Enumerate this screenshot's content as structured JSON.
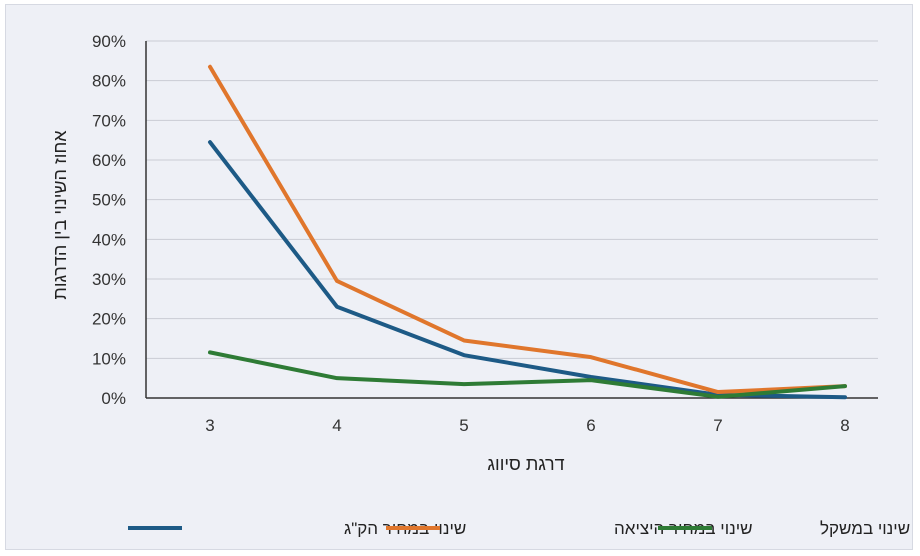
{
  "chart_data": {
    "type": "line",
    "x": [
      3,
      4,
      5,
      6,
      7,
      8
    ],
    "series": [
      {
        "name": "שינוי במחיר הק\"ג",
        "values": [
          64.5,
          23,
          10.8,
          5.3,
          0.8,
          0.2
        ],
        "color": "#1d5a86"
      },
      {
        "name": "שינוי במחיר היציאה",
        "values": [
          83.5,
          29.5,
          14.5,
          10.3,
          1.5,
          3.0
        ],
        "color": "#e0762c"
      },
      {
        "name": "שינוי במשקל",
        "values": [
          11.5,
          5.0,
          3.5,
          4.5,
          0.3,
          3.0
        ],
        "color": "#2e7b35"
      }
    ],
    "xlabel": "דרגת סיווג",
    "ylabel": "אחוז השינוי בין הדרגות",
    "ylim": [
      0,
      90
    ],
    "yticks": [
      "0%",
      "10%",
      "20%",
      "30%",
      "40%",
      "50%",
      "60%",
      "70%",
      "80%",
      "90%"
    ],
    "xticks": [
      "3",
      "4",
      "5",
      "6",
      "7",
      "8"
    ],
    "grid": true,
    "legend_position": "bottom"
  }
}
